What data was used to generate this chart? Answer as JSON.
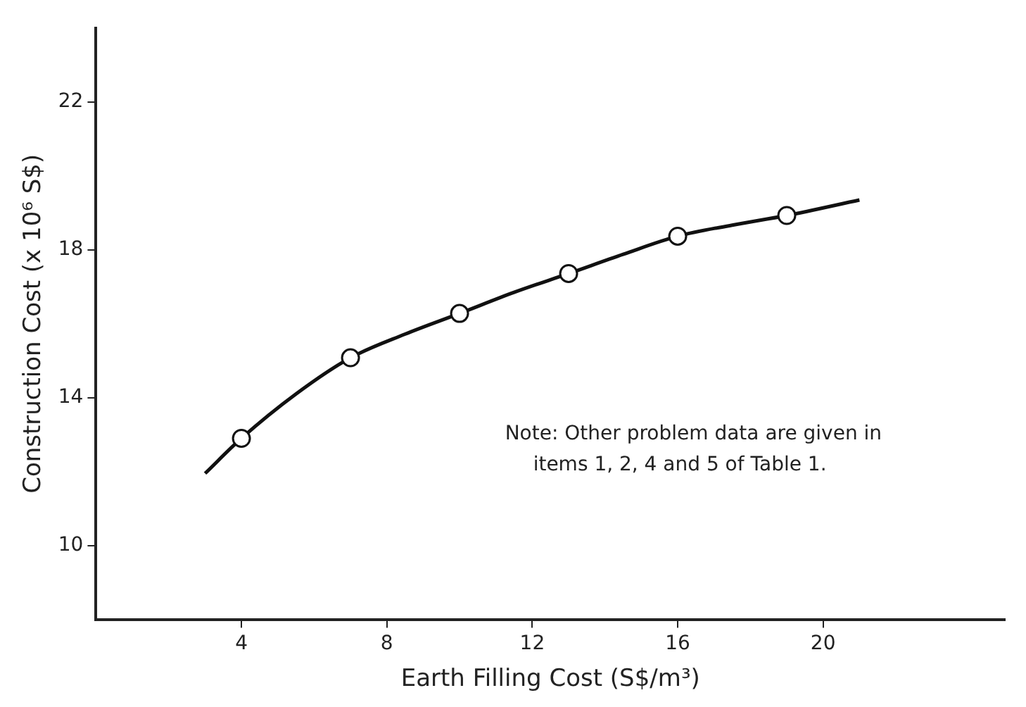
{
  "chart_data": {
    "type": "line",
    "xlabel": "Earth Filling Cost (S$/m³)",
    "ylabel": "Construction Cost (x 10⁶ S$)",
    "xlim": [
      0,
      25
    ],
    "xticks": [
      4,
      8,
      12,
      16,
      20
    ],
    "ylim": [
      8,
      24
    ],
    "yticks": [
      10,
      14,
      18,
      22
    ],
    "grid": false,
    "legend": false,
    "series": [
      {
        "color": "#111111",
        "marker": "none",
        "x": [
          3,
          4,
          5.5,
          7,
          8.5,
          10,
          11.5,
          13,
          14.5,
          16,
          17.5,
          19,
          21
        ],
        "values": [
          11.95,
          12.9,
          14.1,
          15.08,
          15.72,
          16.28,
          16.85,
          17.36,
          17.88,
          18.37,
          18.67,
          18.93,
          19.35
        ]
      },
      {
        "type": "scatter",
        "color": "#111111",
        "marker": "circle",
        "x": [
          4,
          7,
          10,
          13,
          16,
          19
        ],
        "values": [
          12.9,
          15.08,
          16.28,
          17.36,
          18.37,
          18.93
        ]
      }
    ],
    "annotations": [
      "Note: Other problem data are given in items 1, 2, 4 and 5 of Table 1."
    ]
  }
}
